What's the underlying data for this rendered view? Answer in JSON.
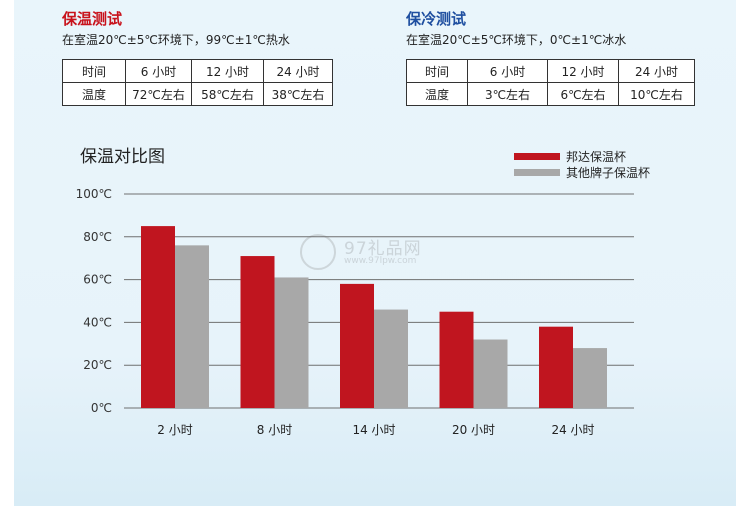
{
  "warm_test": {
    "title": "保温测试",
    "condition": "在室温20℃±5℃环境下，99℃±1℃热水",
    "table": {
      "rows": [
        [
          "时间",
          "6 小时",
          "12 小时",
          "24 小时"
        ],
        [
          "温度",
          "72℃左右",
          "58℃左右",
          "38℃左右"
        ]
      ]
    }
  },
  "cold_test": {
    "title": "保冷测试",
    "condition": "在室温20℃±5℃环境下，0℃±1℃冰水",
    "table": {
      "rows": [
        [
          "时间",
          "6 小时",
          "12 小时",
          "24 小时"
        ],
        [
          "温度",
          "3℃左右",
          "6℃左右",
          "10℃左右"
        ]
      ]
    }
  },
  "watermark": {
    "text": "97礼品网",
    "url": "www.97lpw.com"
  },
  "chart_data": {
    "type": "bar",
    "title": "保温对比图",
    "categories": [
      "2 小时",
      "8 小时",
      "14 小时",
      "20 小时",
      "24 小时"
    ],
    "series": [
      {
        "name": "邦达保温杯",
        "color": "#c0151f",
        "values": [
          85,
          71,
          58,
          45,
          38
        ]
      },
      {
        "name": "其他牌子保温杯",
        "color": "#a8a8a8",
        "values": [
          76,
          61,
          46,
          32,
          28
        ]
      }
    ],
    "yticks": [
      "0℃",
      "20℃",
      "40℃",
      "60℃",
      "80℃",
      "100℃"
    ],
    "ylim": [
      0,
      100
    ],
    "grid": true,
    "legend": "top-right"
  }
}
